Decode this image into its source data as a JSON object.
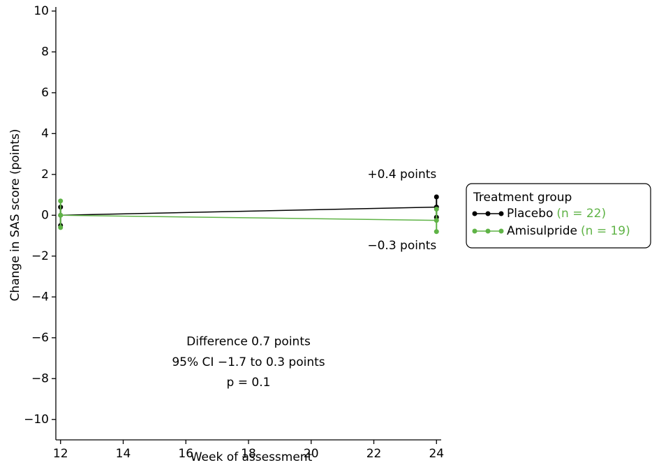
{
  "chart_data": {
    "type": "line",
    "x_label": "Week of assessment",
    "y_label": "Change in SAS score (points)",
    "x": [
      12,
      24
    ],
    "xlim": [
      11.85,
      24.15
    ],
    "xticks": [
      12,
      14,
      16,
      18,
      20,
      22,
      24
    ],
    "ylim": [
      -11,
      10.2
    ],
    "yticks": [
      {
        "value": -10,
        "label": "−10"
      },
      {
        "value": -8,
        "label": "−8"
      },
      {
        "value": -6,
        "label": "−6"
      },
      {
        "value": -4,
        "label": "−4"
      },
      {
        "value": -2,
        "label": "−2"
      },
      0,
      2,
      4,
      6,
      8,
      10
    ],
    "legend_title": "Treatment group",
    "legend_position": "right",
    "series": [
      {
        "name": "Placebo",
        "n_label": "(n = 22)",
        "color": "#000000",
        "values": [
          0,
          0.4
        ],
        "lower": [
          -0.5,
          -0.1
        ],
        "upper": [
          0.4,
          0.9
        ]
      },
      {
        "name": "Amisulpride",
        "n_label": "(n = 19)",
        "color": "#5fb346",
        "values": [
          0,
          -0.25
        ],
        "lower": [
          -0.6,
          -0.8
        ],
        "upper": [
          0.7,
          0.3
        ]
      }
    ],
    "annotations": [
      {
        "text": "+0.4 points",
        "color": "#000000",
        "x": 24,
        "y": 2
      },
      {
        "text": "−0.3 points",
        "color": "#5fb346",
        "x": 24,
        "y": -1.5
      },
      {
        "text": "Difference 0.7 points",
        "color": "#000000",
        "x": 18,
        "y": -6.2
      },
      {
        "text": "95% CI −1.7 to 0.3 points",
        "color": "#000000",
        "x": 18,
        "y": -7.2
      },
      {
        "text": "p = 0.1",
        "color": "#000000",
        "x": 18,
        "y": -8.2
      }
    ]
  }
}
